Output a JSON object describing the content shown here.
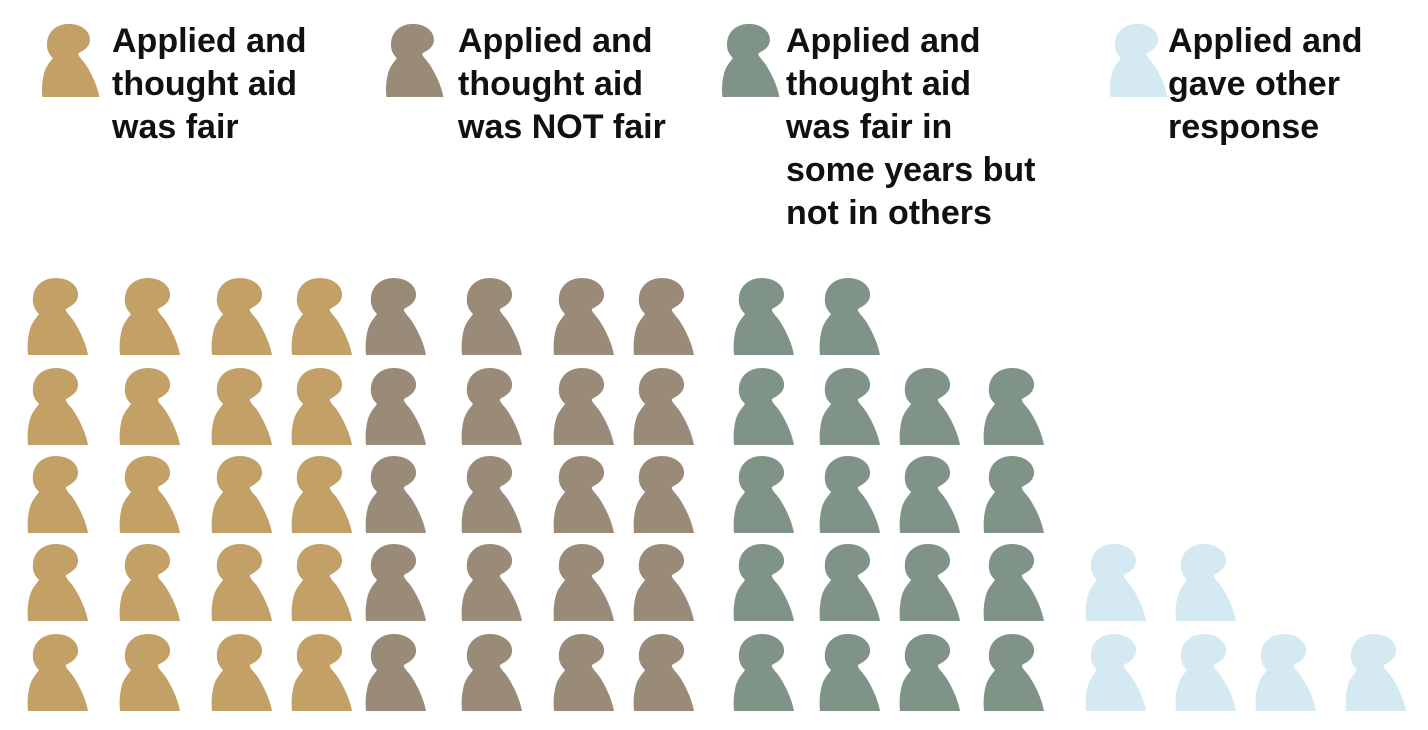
{
  "chart_data": {
    "type": "pictograph",
    "unit_icon": "person-silhouette-icon",
    "title": "",
    "series": [
      {
        "name": "Applied and thought aid was fair",
        "lines": [
          "Applied and",
          "thought aid",
          "was fair"
        ],
        "value": 20,
        "color": "#c3a065"
      },
      {
        "name": "Applied and thought aid was NOT fair",
        "lines": [
          "Applied and",
          "thought aid",
          "was NOT fair"
        ],
        "value": 20,
        "color": "#998b77"
      },
      {
        "name": "Applied and thought aid was fair in some years but not in others",
        "lines": [
          "Applied and",
          "thought aid",
          "was fair in",
          "some years but",
          "not in others"
        ],
        "value": 18,
        "color": "#7f9486"
      },
      {
        "name": "Applied and gave other response",
        "lines": [
          "Applied and",
          "gave other",
          "response"
        ],
        "value": 6,
        "color": "#d4e9f2"
      }
    ]
  }
}
